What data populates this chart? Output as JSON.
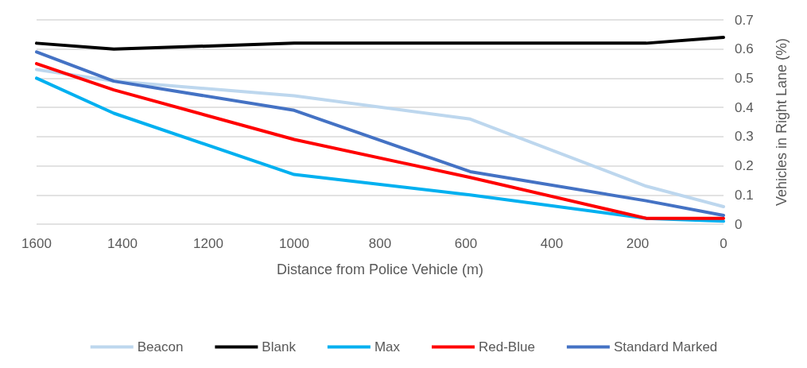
{
  "chart_data": {
    "type": "line",
    "xlabel": "Distance from Police Vehicle (m)",
    "ylabel": "Vehicles in Right Lane (%)",
    "x": [
      1600,
      1420,
      1000,
      590,
      180,
      0
    ],
    "xlim": [
      1600,
      0
    ],
    "xticks": [
      1600,
      1400,
      1200,
      1000,
      800,
      600,
      400,
      200,
      0
    ],
    "ylim": [
      0,
      0.7
    ],
    "yticks": [
      0,
      0.1,
      0.2,
      0.3,
      0.4,
      0.5,
      0.6,
      0.7
    ],
    "grid": "y",
    "legend": "bottom",
    "marker": "none",
    "line_style": "solid",
    "series": [
      {
        "name": "Beacon",
        "color": "#bdd7ee",
        "values": [
          0.53,
          0.49,
          0.44,
          0.36,
          0.13,
          0.06
        ]
      },
      {
        "name": "Blank",
        "color": "#000000",
        "values": [
          0.62,
          0.6,
          0.62,
          0.62,
          0.62,
          0.64
        ]
      },
      {
        "name": "Max",
        "color": "#00b0f0",
        "values": [
          0.5,
          0.38,
          0.17,
          0.1,
          0.02,
          0.01
        ]
      },
      {
        "name": "Red-Blue",
        "color": "#ff0000",
        "values": [
          0.55,
          0.46,
          0.29,
          0.16,
          0.02,
          0.02
        ]
      },
      {
        "name": "Standard Marked",
        "color": "#4472c4",
        "values": [
          0.59,
          0.49,
          0.39,
          0.18,
          0.08,
          0.03
        ]
      }
    ]
  }
}
